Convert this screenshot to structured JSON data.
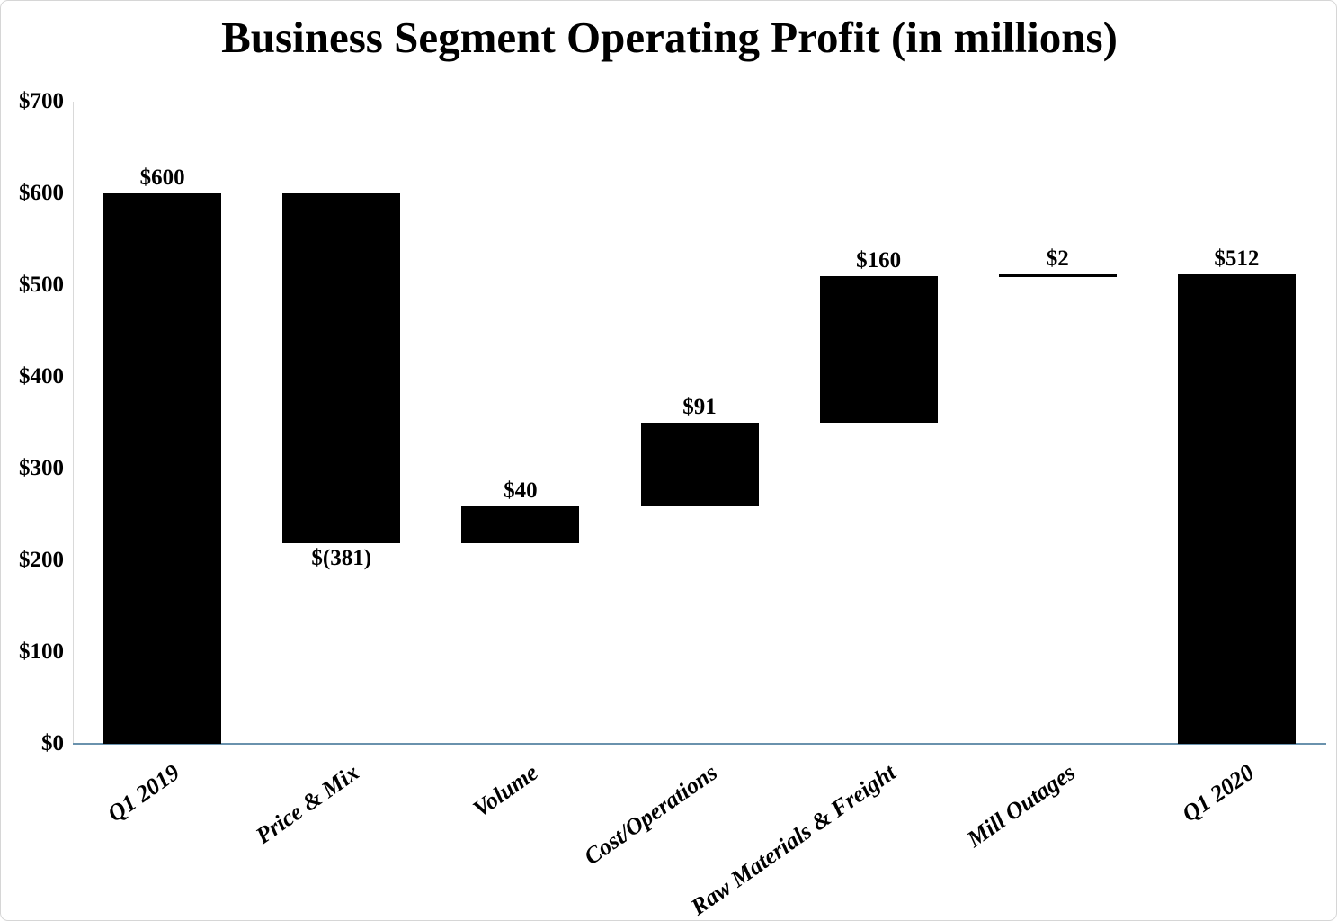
{
  "chart_data": {
    "type": "bar",
    "subtype": "waterfall",
    "title": "Business Segment Operating Profit (in millions)",
    "xlabel": "",
    "ylabel": "",
    "ylim": [
      0,
      700
    ],
    "grid": false,
    "legend": null,
    "bar_color": "#000000",
    "axis_colors": {
      "baseline": "#6a92ad",
      "y_axis_line": "#d9d9d9",
      "frame_border": "#d6d6d6"
    },
    "y_ticks": [
      {
        "label": "$0",
        "value": 0
      },
      {
        "label": "$100",
        "value": 100
      },
      {
        "label": "$200",
        "value": 200
      },
      {
        "label": "$300",
        "value": 300
      },
      {
        "label": "$400",
        "value": 400
      },
      {
        "label": "$500",
        "value": 500
      },
      {
        "label": "$600",
        "value": 600
      },
      {
        "label": "$700",
        "value": 700
      }
    ],
    "bars": [
      {
        "category": "Q1 2019",
        "label": "$600",
        "value": 600,
        "start": 0,
        "end": 600,
        "label_position": "above"
      },
      {
        "category": "Price & Mix",
        "label": "$(381)",
        "value": -381,
        "start": 219,
        "end": 600,
        "label_position": "below"
      },
      {
        "category": "Volume",
        "label": "$40",
        "value": 40,
        "start": 219,
        "end": 259,
        "label_position": "above"
      },
      {
        "category": "Cost/Operations",
        "label": "$91",
        "value": 91,
        "start": 259,
        "end": 350,
        "label_position": "above"
      },
      {
        "category": "Raw Materials & Freight",
        "label": "$160",
        "value": 160,
        "start": 350,
        "end": 510,
        "label_position": "above"
      },
      {
        "category": "Mill Outages",
        "label": "$2",
        "value": 2,
        "start": 510,
        "end": 512,
        "label_position": "above"
      },
      {
        "category": "Q1 2020",
        "label": "$512",
        "value": 512,
        "start": 0,
        "end": 512,
        "label_position": "above"
      }
    ]
  }
}
